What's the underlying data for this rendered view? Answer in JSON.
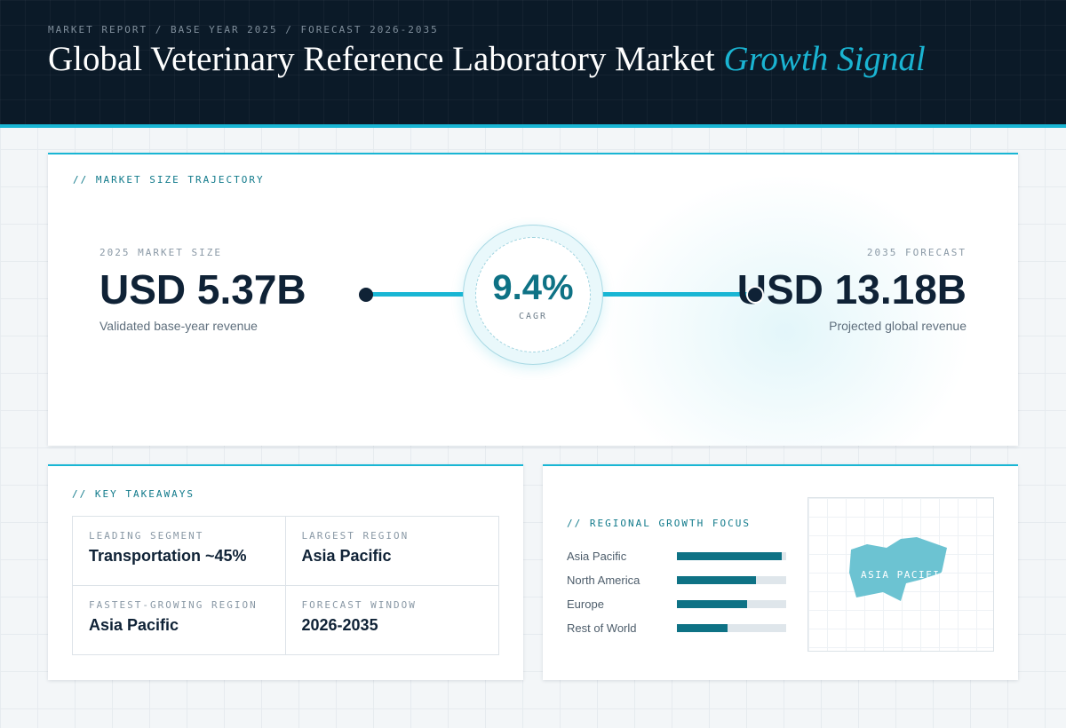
{
  "header": {
    "kicker": "MARKET REPORT / BASE YEAR 2025 / FORECAST 2026-2035",
    "title_main": "Global Veterinary Reference Laboratory Market",
    "title_accent": "Growth Signal"
  },
  "trajectory": {
    "label": "// MARKET SIZE TRAJECTORY",
    "start": {
      "label": "2025 MARKET SIZE",
      "value": "USD 5.37B",
      "caption": "Validated base-year revenue"
    },
    "cagr": {
      "value": "9.4%",
      "label": "CAGR"
    },
    "end": {
      "label": "2035 FORECAST",
      "value": "USD 13.18B",
      "caption": "Projected global revenue"
    }
  },
  "takeaways": {
    "label": "// KEY TAKEAWAYS",
    "items": [
      {
        "label": "LEADING SEGMENT",
        "value": "Transportation ~45%"
      },
      {
        "label": "LARGEST REGION",
        "value": "Asia Pacific"
      },
      {
        "label": "FASTEST-GROWING REGION",
        "value": "Asia Pacific"
      },
      {
        "label": "FORECAST WINDOW",
        "value": "2026-2035"
      }
    ]
  },
  "regional": {
    "label": "// REGIONAL GROWTH FOCUS",
    "bars": [
      {
        "name": "Asia Pacific",
        "level": 0.96
      },
      {
        "name": "North America",
        "level": 0.72
      },
      {
        "name": "Europe",
        "level": 0.64
      },
      {
        "name": "Rest of World",
        "level": 0.46
      }
    ],
    "map_label": "ASIA PACIFIC",
    "bar_color": "#0e7285",
    "map_color": "#6cc3d2"
  },
  "colors": {
    "accent": "#19b6d4",
    "navy": "#0b1a28",
    "teal": "#0e7285"
  }
}
